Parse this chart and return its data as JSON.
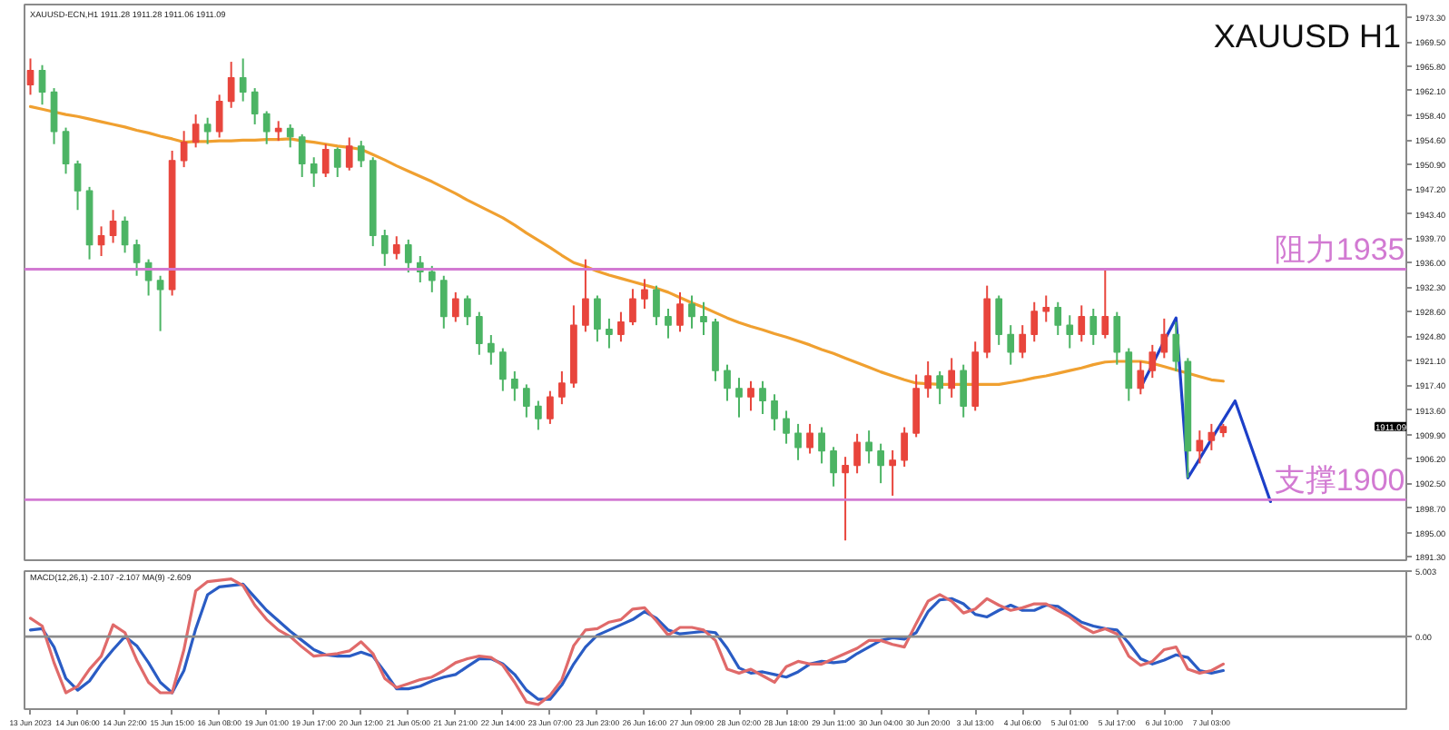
{
  "chart_data": [
    {
      "type": "candlestick",
      "title": "XAUUSD H1",
      "subtitle": "XAUUSD-ECN,H1  1911.28 1911.28 1911.06 1911.09",
      "categories": [
        "13 Jun 2023",
        null,
        null,
        null,
        "14 Jun 06:00",
        null,
        null,
        null,
        "14 Jun 22:00",
        null,
        null,
        null,
        "15 Jun 15:00",
        null,
        null,
        null,
        "16 Jun 08:00",
        null,
        null,
        null,
        "19 Jun 01:00",
        null,
        null,
        null,
        "19 Jun 17:00",
        null,
        null,
        null,
        "20 Jun 12:00",
        null,
        null,
        null,
        "21 Jun 05:00",
        null,
        null,
        null,
        "21 Jun 21:00",
        null,
        null,
        null,
        "22 Jun 14:00",
        null,
        null,
        null,
        "23 Jun 07:00",
        null,
        null,
        null,
        "23 Jun 23:00",
        null,
        null,
        null,
        "26 Jun 16:00",
        null,
        null,
        null,
        "27 Jun 09:00",
        null,
        null,
        null,
        "28 Jun 02:00",
        null,
        null,
        null,
        "28 Jun 18:00",
        null,
        null,
        null,
        "29 Jun 11:00",
        null,
        null,
        null,
        "30 Jun 04:00",
        null,
        null,
        null,
        "30 Jun 20:00",
        null,
        null,
        null,
        "3 Jul 13:00",
        null,
        null,
        null,
        "4 Jul 06:00",
        null,
        null,
        null,
        "5 Jul 01:00",
        null,
        null,
        null,
        "5 Jul 17:00",
        null,
        null,
        null,
        "6 Jul 10:00",
        null,
        null,
        null,
        "7 Jul 03:00",
        null,
        null,
        null,
        null,
        null,
        null,
        null,
        null,
        null,
        null,
        null,
        null,
        null,
        null,
        null,
        null
      ],
      "ohlc": [
        [
          1963.0,
          1967.0,
          1961.5,
          1965.2
        ],
        [
          1965.2,
          1966.0,
          1960.0,
          1961.9
        ],
        [
          1961.9,
          1962.5,
          1954.0,
          1955.9
        ],
        [
          1955.9,
          1956.5,
          1949.5,
          1951.0
        ],
        [
          1951.0,
          1951.5,
          1944.0,
          1946.9
        ],
        [
          1946.9,
          1947.5,
          1936.5,
          1938.7
        ],
        [
          1938.7,
          1941.5,
          1937.0,
          1940.1
        ],
        [
          1940.1,
          1944.0,
          1939.0,
          1942.3
        ],
        [
          1942.3,
          1943.0,
          1937.5,
          1938.7
        ],
        [
          1938.7,
          1939.5,
          1934.0,
          1936.0
        ],
        [
          1936.0,
          1936.5,
          1931.0,
          1933.3
        ],
        [
          1933.3,
          1934.0,
          1925.6,
          1931.9
        ],
        [
          1931.9,
          1953.0,
          1931.0,
          1951.5
        ],
        [
          1951.5,
          1956.0,
          1950.5,
          1954.3
        ],
        [
          1954.3,
          1958.5,
          1953.5,
          1957.0
        ],
        [
          1957.0,
          1958.0,
          1954.0,
          1955.9
        ],
        [
          1955.9,
          1961.5,
          1955.0,
          1960.5
        ],
        [
          1960.5,
          1966.5,
          1959.5,
          1964.1
        ],
        [
          1964.1,
          1967.0,
          1960.5,
          1961.9
        ],
        [
          1961.9,
          1962.5,
          1957.0,
          1958.6
        ],
        [
          1958.6,
          1959.0,
          1954.0,
          1955.9
        ],
        [
          1955.9,
          1957.5,
          1954.5,
          1956.4
        ],
        [
          1956.4,
          1957.0,
          1953.5,
          1955.1
        ],
        [
          1955.1,
          1955.5,
          1949.0,
          1951.0
        ],
        [
          1951.0,
          1952.0,
          1947.5,
          1949.6
        ],
        [
          1949.6,
          1954.0,
          1949.0,
          1953.2
        ],
        [
          1953.2,
          1953.5,
          1949.0,
          1950.5
        ],
        [
          1950.5,
          1955.0,
          1950.0,
          1953.7
        ],
        [
          1953.7,
          1954.5,
          1950.5,
          1951.5
        ],
        [
          1951.5,
          1952.0,
          1938.5,
          1940.1
        ],
        [
          1940.1,
          1941.0,
          1935.5,
          1937.4
        ],
        [
          1937.4,
          1940.0,
          1936.5,
          1938.7
        ],
        [
          1938.7,
          1939.5,
          1934.5,
          1936.0
        ],
        [
          1936.0,
          1937.0,
          1933.0,
          1934.6
        ],
        [
          1934.6,
          1935.5,
          1931.5,
          1933.3
        ],
        [
          1933.3,
          1934.0,
          1926.0,
          1927.8
        ],
        [
          1927.8,
          1931.5,
          1927.0,
          1930.5
        ],
        [
          1930.5,
          1931.0,
          1926.5,
          1927.8
        ],
        [
          1927.8,
          1928.5,
          1922.0,
          1923.7
        ],
        [
          1923.7,
          1925.0,
          1920.5,
          1922.4
        ],
        [
          1922.4,
          1923.0,
          1916.5,
          1918.3
        ],
        [
          1918.3,
          1919.5,
          1915.0,
          1916.9
        ],
        [
          1916.9,
          1917.5,
          1912.5,
          1914.2
        ],
        [
          1914.2,
          1915.0,
          1910.6,
          1912.3
        ],
        [
          1912.3,
          1916.5,
          1911.5,
          1915.6
        ],
        [
          1915.6,
          1919.5,
          1914.5,
          1917.7
        ],
        [
          1917.7,
          1929.5,
          1917.0,
          1926.5
        ],
        [
          1926.5,
          1936.5,
          1925.5,
          1930.5
        ],
        [
          1930.5,
          1931.0,
          1924.0,
          1925.9
        ],
        [
          1925.9,
          1927.5,
          1923.0,
          1925.1
        ],
        [
          1925.1,
          1928.5,
          1924.0,
          1927.0
        ],
        [
          1927.0,
          1932.0,
          1926.5,
          1930.5
        ],
        [
          1930.5,
          1933.5,
          1929.0,
          1931.9
        ],
        [
          1931.9,
          1932.5,
          1926.5,
          1927.8
        ],
        [
          1927.8,
          1929.0,
          1924.5,
          1926.5
        ],
        [
          1926.5,
          1931.5,
          1925.5,
          1929.7
        ],
        [
          1929.7,
          1931.0,
          1926.0,
          1927.8
        ],
        [
          1927.8,
          1930.0,
          1925.0,
          1927.0
        ],
        [
          1927.0,
          1927.5,
          1918.0,
          1919.6
        ],
        [
          1919.6,
          1920.5,
          1915.0,
          1916.9
        ],
        [
          1916.9,
          1918.5,
          1912.5,
          1915.6
        ],
        [
          1915.6,
          1918.0,
          1913.5,
          1916.9
        ],
        [
          1916.9,
          1918.0,
          1913.0,
          1915.0
        ],
        [
          1915.0,
          1916.0,
          1910.5,
          1912.3
        ],
        [
          1912.3,
          1913.5,
          1908.5,
          1910.1
        ],
        [
          1910.1,
          1911.5,
          1906.0,
          1907.9
        ],
        [
          1907.9,
          1911.5,
          1907.0,
          1910.1
        ],
        [
          1910.1,
          1911.0,
          1905.5,
          1907.4
        ],
        [
          1907.4,
          1908.0,
          1902.0,
          1904.1
        ],
        [
          1904.1,
          1906.5,
          1893.8,
          1905.2
        ],
        [
          1905.2,
          1910.0,
          1904.0,
          1908.7
        ],
        [
          1908.7,
          1910.5,
          1905.5,
          1907.4
        ],
        [
          1907.4,
          1908.5,
          1902.5,
          1905.2
        ],
        [
          1905.2,
          1907.5,
          1900.6,
          1906.0
        ],
        [
          1906.0,
          1911.0,
          1905.0,
          1910.1
        ],
        [
          1910.1,
          1919.0,
          1909.5,
          1916.9
        ],
        [
          1916.9,
          1921.0,
          1915.5,
          1918.8
        ],
        [
          1918.8,
          1919.5,
          1914.5,
          1916.9
        ],
        [
          1916.9,
          1921.5,
          1915.5,
          1919.6
        ],
        [
          1919.6,
          1920.5,
          1912.5,
          1914.2
        ],
        [
          1914.2,
          1924.0,
          1913.5,
          1922.4
        ],
        [
          1922.4,
          1932.5,
          1921.5,
          1930.5
        ],
        [
          1930.5,
          1931.0,
          1923.5,
          1925.1
        ],
        [
          1925.1,
          1926.5,
          1920.5,
          1922.4
        ],
        [
          1922.4,
          1926.5,
          1921.5,
          1925.1
        ],
        [
          1925.1,
          1930.0,
          1924.0,
          1928.6
        ],
        [
          1928.6,
          1931.0,
          1927.0,
          1929.2
        ],
        [
          1929.2,
          1930.0,
          1925.0,
          1926.5
        ],
        [
          1926.5,
          1928.0,
          1923.0,
          1925.1
        ],
        [
          1925.1,
          1929.5,
          1924.0,
          1927.8
        ],
        [
          1927.8,
          1929.0,
          1923.5,
          1925.1
        ],
        [
          1925.1,
          1935.2,
          1924.5,
          1927.8
        ],
        [
          1927.8,
          1928.5,
          1920.5,
          1922.4
        ],
        [
          1922.4,
          1923.0,
          1915.0,
          1916.9
        ],
        [
          1916.9,
          1921.0,
          1916.0,
          1919.6
        ],
        [
          1919.6,
          1923.5,
          1918.5,
          1922.4
        ],
        [
          1922.4,
          1927.5,
          1921.5,
          1925.1
        ],
        [
          1925.1,
          1927.0,
          1919.5,
          1921.0
        ],
        [
          1921.0,
          1921.5,
          1903.3,
          1907.4
        ],
        [
          1907.4,
          1910.5,
          1905.5,
          1909.0
        ],
        [
          1909.0,
          1911.5,
          1907.5,
          1910.2
        ],
        [
          1910.2,
          1911.5,
          1909.5,
          1911.09
        ],
        null,
        null,
        null,
        null,
        null,
        null,
        null,
        null,
        null,
        null,
        null,
        null,
        null,
        null,
        null
      ],
      "colors": [
        "#e8453c",
        "#4cb464",
        "#4cb464",
        "#4cb464",
        "#4cb464",
        "#4cb464",
        "#e8453c",
        "#e8453c",
        "#4cb464",
        "#4cb464",
        "#4cb464",
        "#4cb464",
        "#e8453c",
        "#e8453c",
        "#e8453c",
        "#4cb464",
        "#e8453c",
        "#e8453c",
        "#4cb464",
        "#4cb464",
        "#4cb464",
        "#e8453c",
        "#4cb464",
        "#4cb464",
        "#4cb464",
        "#e8453c",
        "#4cb464",
        "#e8453c",
        "#4cb464",
        "#4cb464",
        "#4cb464",
        "#e8453c",
        "#4cb464",
        "#4cb464",
        "#4cb464",
        "#4cb464",
        "#e8453c",
        "#4cb464",
        "#4cb464",
        "#4cb464",
        "#4cb464",
        "#4cb464",
        "#4cb464",
        "#4cb464",
        "#e8453c",
        "#e8453c",
        "#e8453c",
        "#e8453c",
        "#4cb464",
        "#4cb464",
        "#e8453c",
        "#e8453c",
        "#e8453c",
        "#4cb464",
        "#4cb464",
        "#e8453c",
        "#4cb464",
        "#4cb464",
        "#4cb464",
        "#4cb464",
        "#4cb464",
        "#e8453c",
        "#4cb464",
        "#4cb464",
        "#4cb464",
        "#4cb464",
        "#e8453c",
        "#4cb464",
        "#4cb464",
        "#e8453c",
        "#e8453c",
        "#4cb464",
        "#4cb464",
        "#e8453c",
        "#e8453c",
        "#e8453c",
        "#e8453c",
        "#4cb464",
        "#e8453c",
        "#4cb464",
        "#e8453c",
        "#e8453c",
        "#4cb464",
        "#4cb464",
        "#e8453c",
        "#e8453c",
        "#e8453c",
        "#4cb464",
        "#4cb464",
        "#e8453c",
        "#4cb464",
        "#e8453c",
        "#4cb464",
        "#4cb464",
        "#e8453c",
        "#e8453c",
        "#e8453c",
        "#4cb464",
        "#4cb464",
        "#e8453c",
        "#e8453c",
        "#e8453c",
        null,
        null,
        null,
        null,
        null,
        null,
        null,
        null,
        null,
        null,
        null,
        null,
        null,
        null,
        null
      ],
      "value_labels": [
        null,
        null,
        null,
        null,
        null,
        null,
        null,
        null,
        null,
        null,
        null,
        null,
        null,
        null,
        null,
        null,
        null,
        null,
        null,
        null,
        null,
        null,
        null,
        null,
        null,
        null,
        null,
        null,
        null,
        null,
        null,
        null,
        null,
        null,
        null,
        null,
        null,
        null,
        null,
        null,
        null,
        null,
        null,
        null,
        null,
        null,
        null,
        null,
        null,
        null,
        null,
        null,
        null,
        null,
        null,
        null,
        null,
        null,
        null,
        null,
        null,
        null,
        null,
        null,
        null,
        null,
        null,
        null,
        null,
        null,
        null,
        null,
        null,
        null,
        null,
        null,
        null,
        null,
        null,
        null,
        null,
        null,
        null,
        null,
        null,
        null,
        null,
        null,
        null,
        null,
        null,
        null,
        null,
        null,
        null,
        null,
        null,
        null,
        null,
        null,
        null,
        "1911.09",
        null,
        null,
        null,
        null,
        null,
        null,
        null,
        null,
        null,
        null,
        null,
        null,
        null,
        null,
        null
      ],
      "series": [
        {
          "type": "line",
          "color": "#f0a030",
          "values": [
            1959.7,
            1959.3,
            1958.9,
            1958.5,
            1958.2,
            1957.8,
            1957.4,
            1957.0,
            1956.6,
            1956.1,
            1955.7,
            1955.2,
            1954.8,
            1954.3,
            1954.4,
            1954.4,
            1954.5,
            1954.5,
            1954.6,
            1954.6,
            1954.7,
            1954.7,
            1954.8,
            1954.5,
            1954.3,
            1954.0,
            1953.7,
            1953.5,
            1953.2,
            1952.4,
            1951.6,
            1950.7,
            1949.9,
            1949.1,
            1948.3,
            1947.4,
            1946.5,
            1945.5,
            1944.6,
            1943.7,
            1942.8,
            1941.7,
            1940.5,
            1939.4,
            1938.3,
            1937.1,
            1936.0,
            1935.4,
            1934.7,
            1934.1,
            1933.6,
            1933.1,
            1932.6,
            1932.1,
            1931.5,
            1930.7,
            1929.9,
            1929.2,
            1928.4,
            1927.6,
            1926.9,
            1926.3,
            1925.8,
            1925.2,
            1924.7,
            1924.1,
            1923.5,
            1922.8,
            1922.2,
            1921.5,
            1920.8,
            1920.1,
            1919.4,
            1918.8,
            1918.2,
            1917.7,
            1917.6,
            1917.5,
            1917.5,
            1917.5,
            1917.5,
            1917.5,
            1917.5,
            1917.8,
            1918.1,
            1918.5,
            1918.8,
            1919.2,
            1919.6,
            1920.0,
            1920.5,
            1920.9,
            1921.0,
            1921.0,
            1921.0,
            1920.7,
            1920.2,
            1919.7,
            1919.2,
            1918.7,
            1918.2,
            1918.0,
            null,
            null,
            null,
            null,
            null,
            null,
            null,
            null,
            null,
            null,
            null,
            null,
            null,
            null,
            null
          ]
        },
        {
          "type": "line",
          "color": "#1c3fc8",
          "values": [
            null,
            null,
            null,
            null,
            null,
            null,
            null,
            null,
            null,
            null,
            null,
            null,
            null,
            null,
            null,
            null,
            null,
            null,
            null,
            null,
            null,
            null,
            null,
            null,
            null,
            null,
            null,
            null,
            null,
            null,
            null,
            null,
            null,
            null,
            null,
            null,
            null,
            null,
            null,
            null,
            null,
            null,
            null,
            null,
            null,
            null,
            null,
            null,
            null,
            null,
            null,
            null,
            null,
            null,
            null,
            null,
            null,
            null,
            null,
            null,
            null,
            null,
            null,
            null,
            null,
            null,
            null,
            null,
            null,
            null,
            null,
            null,
            null,
            null,
            null,
            null,
            null,
            null,
            null,
            null,
            null,
            null,
            null,
            null,
            null,
            null,
            null,
            null,
            null,
            null,
            null,
            null,
            null,
            null,
            1917.0,
            1920.5,
            1924.1,
            1927.6,
            1903.3,
            1906.2,
            1909.2,
            1912.1,
            1915.0,
            1909.9,
            1904.8,
            1899.7,
            null,
            null,
            null,
            null,
            null,
            null,
            null,
            null,
            null,
            null,
            null
          ]
        }
      ],
      "ref_lines": [
        {
          "axis": "y",
          "value": 1935,
          "label": "阻力1935",
          "color": "#d27ad2"
        },
        {
          "axis": "y",
          "value": 1900,
          "label": "支撑1900",
          "color": "#d27ad2"
        }
      ],
      "ylim": [
        1890.8,
        1975.2
      ],
      "yticks": [
        {
          "value": 1891.3,
          "label": "1891.30"
        },
        {
          "value": 1895.0,
          "label": "1895.00"
        },
        {
          "value": 1898.7,
          "label": "1898.70"
        },
        {
          "value": 1902.5,
          "label": "1902.50"
        },
        {
          "value": 1906.2,
          "label": "1906.20"
        },
        {
          "value": 1909.9,
          "label": "1909.90"
        },
        {
          "value": 1913.6,
          "label": "1913.60"
        },
        {
          "value": 1917.4,
          "label": "1917.40"
        },
        {
          "value": 1921.1,
          "label": "1921.10"
        },
        {
          "value": 1924.8,
          "label": "1924.80"
        },
        {
          "value": 1928.6,
          "label": "1928.60"
        },
        {
          "value": 1932.3,
          "label": "1932.30"
        },
        {
          "value": 1936.0,
          "label": "1936.00"
        },
        {
          "value": 1939.7,
          "label": "1939.70"
        },
        {
          "value": 1943.4,
          "label": "1943.40"
        },
        {
          "value": 1947.2,
          "label": "1947.20"
        },
        {
          "value": 1950.9,
          "label": "1950.90"
        },
        {
          "value": 1954.6,
          "label": "1954.60"
        },
        {
          "value": 1958.4,
          "label": "1958.40"
        },
        {
          "value": 1962.1,
          "label": "1962.10"
        },
        {
          "value": 1965.8,
          "label": "1965.80"
        },
        {
          "value": 1969.5,
          "label": "1969.50"
        },
        {
          "value": 1973.3,
          "label": "1973.30"
        }
      ],
      "tick_labels": "y"
    },
    {
      "type": "line",
      "subtitle": "MACD(12,26,1) -2.107 -2.107 MA(9) -2.609",
      "categories": [
        "13 Jun 2023",
        null,
        null,
        null,
        "14 Jun 06:00",
        null,
        null,
        null,
        "14 Jun 22:00",
        null,
        null,
        null,
        "15 Jun 15:00",
        null,
        null,
        null,
        "16 Jun 08:00",
        null,
        null,
        null,
        "19 Jun 01:00",
        null,
        null,
        null,
        "19 Jun 17:00",
        null,
        null,
        null,
        "20 Jun 12:00",
        null,
        null,
        null,
        "21 Jun 05:00",
        null,
        null,
        null,
        "21 Jun 21:00",
        null,
        null,
        null,
        "22 Jun 14:00",
        null,
        null,
        null,
        "23 Jun 07:00",
        null,
        null,
        null,
        "23 Jun 23:00",
        null,
        null,
        null,
        "26 Jun 16:00",
        null,
        null,
        null,
        "27 Jun 09:00",
        null,
        null,
        null,
        "28 Jun 02:00",
        null,
        null,
        null,
        "28 Jun 18:00",
        null,
        null,
        null,
        "29 Jun 11:00",
        null,
        null,
        null,
        "30 Jun 04:00",
        null,
        null,
        null,
        "30 Jun 20:00",
        null,
        null,
        null,
        "3 Jul 13:00",
        null,
        null,
        null,
        "4 Jul 06:00",
        null,
        null,
        null,
        "5 Jul 01:00",
        null,
        null,
        null,
        "5 Jul 17:00",
        null,
        null,
        null,
        "6 Jul 10:00",
        null,
        null,
        null,
        "7 Jul 03:00",
        null,
        null,
        null,
        null,
        null,
        null,
        null,
        null,
        null,
        null,
        null,
        null,
        null,
        null,
        null,
        null
      ],
      "series": [
        {
          "color": "#2a5cc4",
          "values": [
            0.5,
            0.6,
            -0.8,
            -3.2,
            -4.1,
            -3.4,
            -2.1,
            -1.0,
            0.0,
            -0.7,
            -2.0,
            -3.5,
            -4.3,
            -2.6,
            0.6,
            3.2,
            3.8,
            3.9,
            4.0,
            3.0,
            2.0,
            1.2,
            0.4,
            -0.3,
            -1.0,
            -1.4,
            -1.5,
            -1.5,
            -1.2,
            -1.5,
            -2.7,
            -4.0,
            -4.0,
            -3.8,
            -3.4,
            -3.1,
            -2.9,
            -2.3,
            -1.7,
            -1.7,
            -2.1,
            -2.9,
            -4.1,
            -4.8,
            -4.8,
            -3.7,
            -2.1,
            -0.8,
            0.1,
            0.5,
            0.9,
            1.3,
            1.9,
            1.4,
            0.5,
            0.2,
            0.3,
            0.4,
            0.3,
            -0.9,
            -2.4,
            -2.8,
            -2.7,
            -2.9,
            -3.1,
            -2.7,
            -2.1,
            -1.9,
            -2.0,
            -1.9,
            -1.3,
            -0.8,
            -0.3,
            -0.1,
            -0.2,
            0.3,
            1.9,
            2.8,
            2.9,
            2.5,
            1.7,
            1.5,
            2.0,
            2.4,
            2.0,
            2.0,
            2.4,
            2.3,
            1.7,
            1.1,
            0.8,
            0.6,
            0.5,
            -0.5,
            -1.7,
            -2.1,
            -1.8,
            -1.4,
            -1.6,
            -2.6,
            -2.8,
            -2.6,
            null,
            null,
            null,
            null,
            null,
            null,
            null,
            null,
            null,
            null,
            null,
            null,
            null,
            null,
            null
          ]
        },
        {
          "color": "#e06a6a",
          "values": [
            1.4,
            0.8,
            -2.0,
            -4.3,
            -3.8,
            -2.5,
            -1.5,
            0.9,
            0.3,
            -1.8,
            -3.5,
            -4.3,
            -4.3,
            -1.0,
            3.5,
            4.2,
            4.3,
            4.4,
            3.9,
            2.4,
            1.3,
            0.5,
            0.0,
            -0.8,
            -1.5,
            -1.4,
            -1.3,
            -1.1,
            -0.4,
            -1.3,
            -3.2,
            -3.9,
            -3.6,
            -3.3,
            -3.1,
            -2.6,
            -2.0,
            -1.7,
            -1.5,
            -1.6,
            -2.2,
            -3.5,
            -5.0,
            -5.2,
            -4.5,
            -3.3,
            -0.7,
            0.5,
            0.6,
            1.1,
            1.3,
            2.1,
            2.2,
            1.2,
            0.1,
            0.7,
            0.7,
            0.5,
            -0.3,
            -2.5,
            -2.8,
            -2.5,
            -3.0,
            -3.5,
            -2.3,
            -1.9,
            -2.1,
            -2.1,
            -1.7,
            -1.3,
            -0.9,
            -0.3,
            -0.3,
            -0.6,
            -0.8,
            1.0,
            2.7,
            3.2,
            2.7,
            1.8,
            2.1,
            2.9,
            2.4,
            2.0,
            2.2,
            2.5,
            2.5,
            2.0,
            1.5,
            0.8,
            0.3,
            0.6,
            0.2,
            -1.5,
            -2.2,
            -1.9,
            -1.0,
            -0.8,
            -2.5,
            -2.8,
            -2.6,
            -2.1,
            null,
            null,
            null,
            null,
            null,
            null,
            null,
            null,
            null,
            null,
            null,
            null,
            null,
            null,
            null
          ]
        }
      ],
      "ref_lines": [
        {
          "axis": "y",
          "value": 0,
          "color": "#8c8c8c"
        }
      ],
      "ylim": [
        -5.55,
        5.003
      ],
      "yticks": [
        5.003,
        {
          "value": 0,
          "label": "0.00"
        }
      ]
    }
  ]
}
